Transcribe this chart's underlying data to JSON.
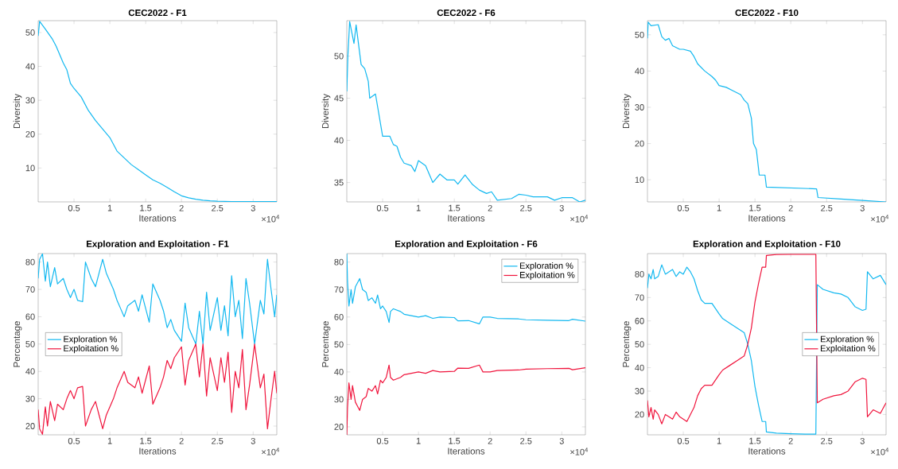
{
  "chart_data": [
    {
      "type": "line",
      "title": "CEC2022 - F1",
      "xlabel": "Iterations",
      "ylabel": "Diversity",
      "annotations": [
        "×10$^{4}$"
      ],
      "xlim": [
        0,
        3.33
      ],
      "ylim": [
        0,
        53.5
      ],
      "xticks": [
        0.5,
        1,
        1.5,
        2,
        2.5,
        3
      ],
      "yticks": [
        10,
        20,
        30,
        40,
        50
      ],
      "x": [
        0,
        0.02,
        0.1,
        0.2,
        0.25,
        0.35,
        0.4,
        0.45,
        0.5,
        0.6,
        0.7,
        0.8,
        0.9,
        1.0,
        1.1,
        1.2,
        1.3,
        1.4,
        1.5,
        1.6,
        1.7,
        1.8,
        1.9,
        2.0,
        2.1,
        2.2,
        2.3,
        2.4,
        2.5,
        2.7,
        3.0,
        3.33
      ],
      "series": [
        {
          "color": "#12b8f0",
          "values": [
            49,
            53.3,
            51,
            48,
            46,
            41,
            39,
            35,
            33.5,
            31,
            27,
            24,
            21.5,
            19,
            15,
            13,
            11,
            9.5,
            8,
            6.5,
            5.5,
            4.3,
            3,
            1.8,
            1.2,
            0.8,
            0.5,
            0.3,
            0.2,
            0.1,
            0.1,
            0.1
          ]
        }
      ]
    },
    {
      "type": "line",
      "title": "CEC2022 - F6",
      "xlabel": "Iterations",
      "ylabel": "Diversity",
      "annotations": [
        "×10$^{4}$"
      ],
      "xlim": [
        0,
        3.33
      ],
      "ylim": [
        32.7,
        54.2
      ],
      "xticks": [
        0.5,
        1,
        1.5,
        2,
        2.5,
        3
      ],
      "yticks": [
        35,
        40,
        45,
        50
      ],
      "x": [
        0,
        0.015,
        0.04,
        0.1,
        0.13,
        0.17,
        0.2,
        0.25,
        0.3,
        0.32,
        0.4,
        0.45,
        0.5,
        0.6,
        0.65,
        0.7,
        0.75,
        0.8,
        0.9,
        0.95,
        1.0,
        1.1,
        1.2,
        1.3,
        1.4,
        1.5,
        1.55,
        1.65,
        1.75,
        1.85,
        1.95,
        2.02,
        2.1,
        2.3,
        2.4,
        2.5,
        2.6,
        2.8,
        2.9,
        3.0,
        3.15,
        3.25,
        3.33
      ],
      "series": [
        {
          "color": "#12b8f0",
          "values": [
            45.8,
            50,
            54.1,
            51.5,
            53.7,
            51,
            49,
            48.5,
            47,
            45,
            45.5,
            43,
            40.5,
            40.5,
            39.5,
            39.3,
            38,
            37.3,
            37,
            36.3,
            37.6,
            37,
            35,
            36,
            35.3,
            35.3,
            34.8,
            35.9,
            34.8,
            34.1,
            33.7,
            33.9,
            32.9,
            33.1,
            33.6,
            33.5,
            33.3,
            33.3,
            32.9,
            33.2,
            33.2,
            32.7,
            32.9
          ]
        }
      ]
    },
    {
      "type": "line",
      "title": "CEC2022 - F10",
      "xlabel": "Iterations",
      "ylabel": "Diversity",
      "annotations": [
        "×10$^{4}$"
      ],
      "xlim": [
        0,
        3.33
      ],
      "ylim": [
        3.9,
        53.9
      ],
      "xticks": [
        0.5,
        1,
        1.5,
        2,
        2.5,
        3
      ],
      "yticks": [
        10,
        20,
        30,
        40,
        50
      ],
      "x": [
        0,
        0.01,
        0.05,
        0.15,
        0.2,
        0.25,
        0.3,
        0.35,
        0.4,
        0.45,
        0.5,
        0.6,
        0.65,
        0.7,
        0.8,
        0.9,
        0.95,
        1.0,
        1.1,
        1.2,
        1.3,
        1.35,
        1.4,
        1.45,
        1.48,
        1.52,
        1.56,
        1.64,
        1.66,
        2.36,
        2.38,
        2.7,
        3.0,
        3.33
      ],
      "series": [
        {
          "color": "#12b8f0",
          "values": [
            49,
            53.5,
            52.5,
            52.8,
            49.5,
            48.5,
            49,
            47,
            46.5,
            46,
            46,
            45.5,
            44,
            42,
            40,
            38.5,
            37.5,
            36,
            35.5,
            34.5,
            33.5,
            32,
            31,
            27,
            20,
            18.3,
            11.3,
            11.3,
            8,
            7.5,
            5.1,
            4.7,
            4.3,
            3.9
          ]
        }
      ]
    },
    {
      "type": "line",
      "title": "Exploration and Exploitation - F1",
      "xlabel": "Iterations",
      "ylabel": "Percentage",
      "annotations": [
        "×10$^{4}$"
      ],
      "xlim": [
        0,
        3.33
      ],
      "ylim": [
        16.8,
        83.1
      ],
      "legend": "left",
      "xticks": [
        0.5,
        1,
        1.5,
        2,
        2.5,
        3
      ],
      "yticks": [
        20,
        30,
        40,
        50,
        60,
        70,
        80
      ],
      "x": [
        0,
        0.02,
        0.06,
        0.08,
        0.1,
        0.13,
        0.17,
        0.23,
        0.27,
        0.35,
        0.4,
        0.45,
        0.5,
        0.55,
        0.62,
        0.66,
        0.74,
        0.8,
        0.85,
        0.9,
        0.95,
        1.05,
        1.1,
        1.15,
        1.2,
        1.25,
        1.35,
        1.4,
        1.45,
        1.55,
        1.6,
        1.7,
        1.75,
        1.8,
        1.85,
        1.9,
        2.0,
        2.05,
        2.1,
        2.2,
        2.25,
        2.3,
        2.35,
        2.4,
        2.5,
        2.55,
        2.6,
        2.65,
        2.7,
        2.75,
        2.8,
        2.85,
        2.9,
        2.95,
        3.02,
        3.1,
        3.15,
        3.2,
        3.25,
        3.3,
        3.33
      ],
      "series": [
        {
          "name": "Exploration %",
          "color": "#12b8f0",
          "values": [
            74,
            81,
            83,
            78,
            73,
            80,
            71,
            78,
            72,
            74,
            70,
            67,
            70,
            66,
            65.5,
            80,
            74,
            71,
            76,
            81,
            76,
            70,
            66,
            63,
            60,
            64,
            66,
            62,
            68,
            58,
            72,
            66,
            62,
            56,
            59,
            55,
            51,
            65,
            56,
            50,
            62,
            50,
            69,
            55,
            67,
            55,
            64,
            53,
            75,
            60,
            66,
            52,
            74,
            65,
            50,
            66,
            61,
            81,
            70,
            60,
            68
          ]
        },
        {
          "name": "Exploitation %",
          "color": "#f0143c",
          "values": [
            26,
            19,
            17,
            22,
            27,
            20,
            29,
            22,
            28,
            26,
            30,
            33,
            30,
            34,
            34.5,
            20,
            26,
            29,
            24,
            19,
            24,
            30,
            34,
            37,
            40,
            36,
            34,
            38,
            32,
            42,
            28,
            34,
            38,
            44,
            41,
            45,
            49,
            35,
            44,
            50,
            38,
            50,
            31,
            45,
            33,
            45,
            36,
            47,
            25,
            40,
            34,
            48,
            26,
            35,
            50,
            34,
            39,
            19,
            30,
            40,
            32
          ]
        }
      ]
    },
    {
      "type": "line",
      "title": "Exploration and Exploitation - F6",
      "xlabel": "Iterations",
      "ylabel": "Percentage",
      "annotations": [
        "×10$^{4}$"
      ],
      "xlim": [
        0,
        3.33
      ],
      "ylim": [
        17.1,
        83.1
      ],
      "legend": "top right",
      "xticks": [
        0.5,
        1,
        1.5,
        2,
        2.5,
        3
      ],
      "yticks": [
        20,
        30,
        40,
        50,
        60,
        70,
        80
      ],
      "x": [
        0,
        0.01,
        0.03,
        0.06,
        0.08,
        0.12,
        0.18,
        0.22,
        0.27,
        0.3,
        0.35,
        0.4,
        0.43,
        0.47,
        0.5,
        0.55,
        0.59,
        0.61,
        0.65,
        0.75,
        0.8,
        0.9,
        1.0,
        1.1,
        1.2,
        1.3,
        1.5,
        1.55,
        1.7,
        1.85,
        1.9,
        2.0,
        2.1,
        2.4,
        2.5,
        2.8,
        3.1,
        3.15,
        3.33
      ],
      "series": [
        {
          "name": "Exploration %",
          "color": "#12b8f0",
          "values": [
            83,
            73,
            64,
            70,
            65,
            71,
            74,
            70,
            69,
            66,
            67,
            65,
            68,
            63,
            64,
            62,
            58,
            62,
            63,
            62,
            61,
            60.5,
            60,
            60.5,
            59.5,
            60,
            59.8,
            58.6,
            58.7,
            57.5,
            60,
            60,
            59.5,
            59.3,
            59,
            58.8,
            58.7,
            59.2,
            58.5
          ]
        },
        {
          "name": "Exploitation %",
          "color": "#f0143c",
          "values": [
            17.1,
            27,
            36,
            30,
            35,
            29,
            26,
            30,
            31,
            34,
            33,
            35,
            32,
            37,
            36,
            38,
            42.5,
            38,
            37,
            38,
            39,
            39.5,
            40,
            39.5,
            40.5,
            40,
            40.2,
            41.4,
            41.3,
            42.5,
            40,
            40,
            40.5,
            40.7,
            41,
            41.2,
            41.3,
            40.8,
            41.5
          ]
        }
      ]
    },
    {
      "type": "line",
      "title": "Exploration and Exploitation - F10",
      "xlabel": "Iterations",
      "ylabel": "Percentage",
      "annotations": [
        "×10$^{4}$"
      ],
      "xlim": [
        0,
        3.33
      ],
      "ylim": [
        11.3,
        88.8
      ],
      "legend": "right",
      "xticks": [
        0.5,
        1,
        1.5,
        2,
        2.5,
        3
      ],
      "yticks": [
        20,
        30,
        40,
        50,
        60,
        70,
        80
      ],
      "x": [
        0,
        0.02,
        0.05,
        0.08,
        0.1,
        0.15,
        0.2,
        0.25,
        0.3,
        0.35,
        0.4,
        0.45,
        0.5,
        0.55,
        0.6,
        0.65,
        0.7,
        0.75,
        0.8,
        0.9,
        1.0,
        1.05,
        1.15,
        1.25,
        1.35,
        1.4,
        1.45,
        1.5,
        1.55,
        1.6,
        1.65,
        1.66,
        1.8,
        2.0,
        2.2,
        2.35,
        2.37,
        2.45,
        2.6,
        2.7,
        2.8,
        2.9,
        3.0,
        3.05,
        3.07,
        3.15,
        3.25,
        3.33
      ],
      "series": [
        {
          "name": "Exploration %",
          "color": "#12b8f0",
          "values": [
            74,
            80,
            78,
            82,
            78,
            79,
            84,
            80,
            81,
            82,
            79,
            81,
            80,
            83,
            81,
            78,
            73,
            69,
            67.5,
            67.5,
            63,
            61,
            59,
            57,
            55,
            50,
            43,
            32,
            24,
            17,
            17,
            12.5,
            12,
            11.8,
            11.6,
            11.6,
            75.5,
            73.5,
            72,
            71.5,
            70,
            66,
            64.5,
            65,
            81,
            78,
            79.5,
            75.5
          ]
        },
        {
          "name": "Exploitation %",
          "color": "#f0143c",
          "values": [
            26,
            19,
            23,
            18,
            22,
            20,
            16,
            20,
            19,
            18,
            21,
            19,
            18,
            17,
            20,
            23,
            28,
            31,
            32.5,
            32.5,
            37,
            39,
            41,
            43,
            45,
            50,
            57,
            68,
            76,
            83,
            83,
            88,
            88.4,
            88.5,
            88.5,
            88.5,
            25,
            26.5,
            28,
            28.5,
            30,
            34,
            35.5,
            35,
            19,
            22,
            20.5,
            25
          ]
        }
      ]
    }
  ]
}
